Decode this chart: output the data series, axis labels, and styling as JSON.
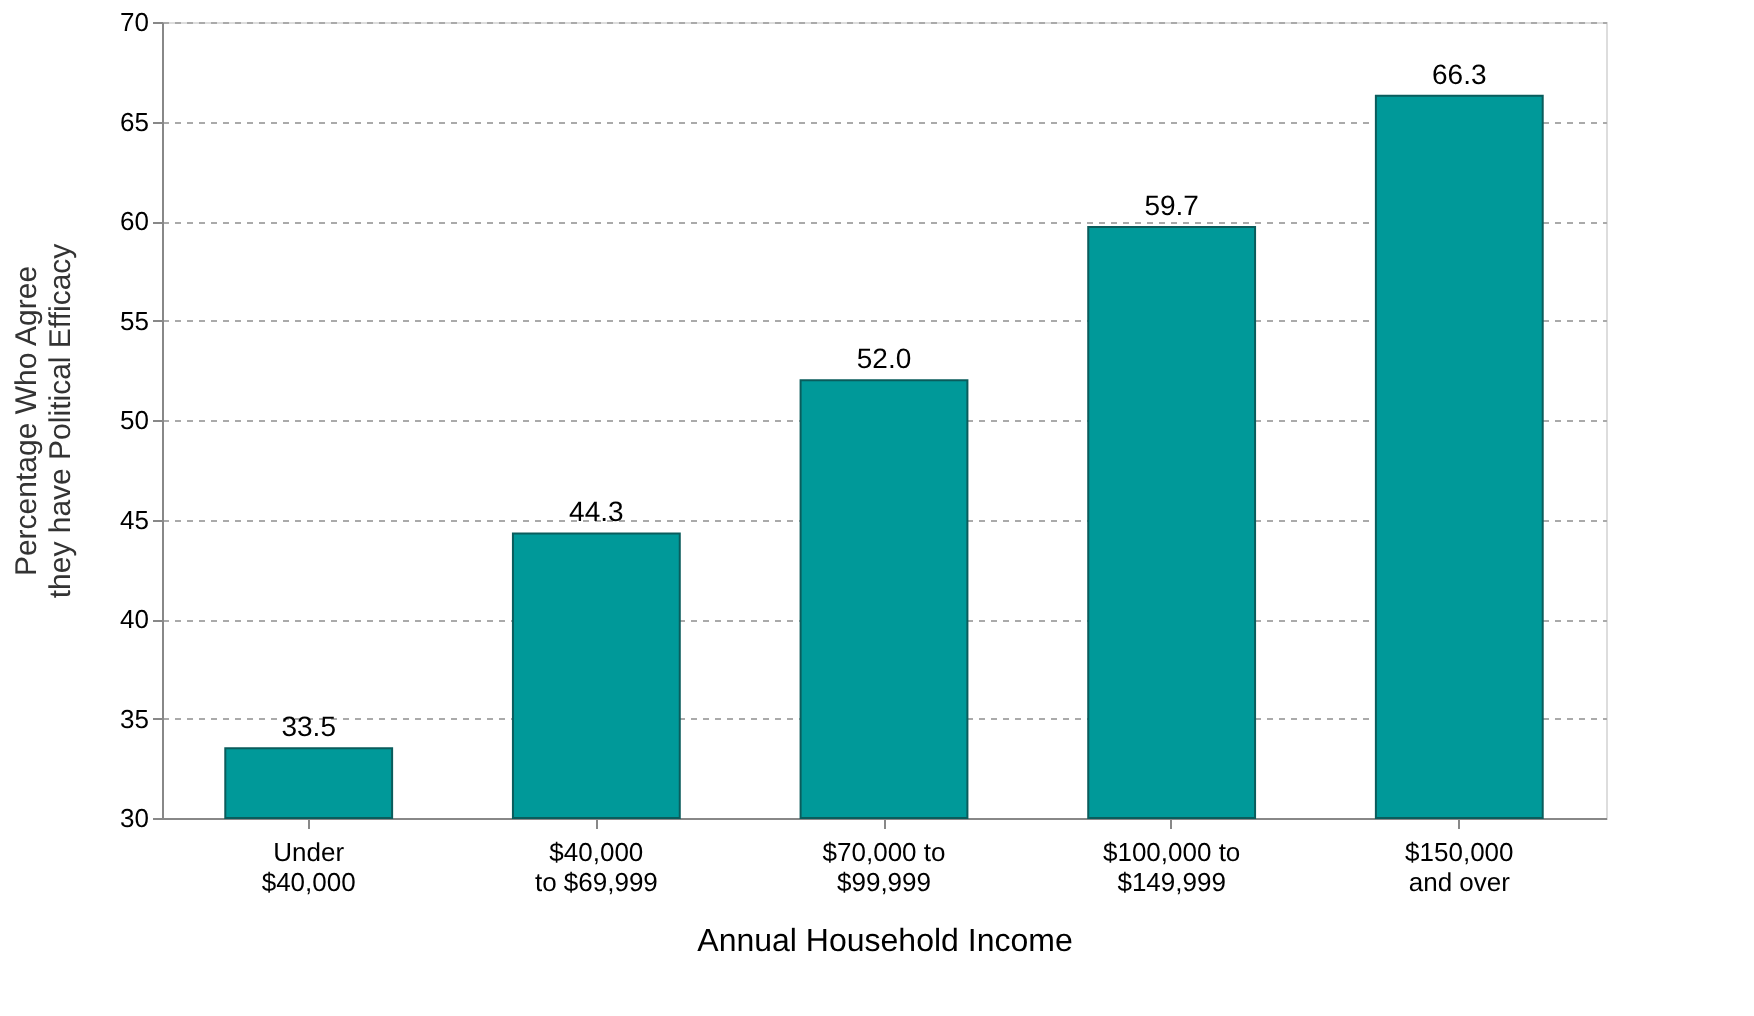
{
  "chart_data": {
    "type": "bar",
    "xlabel": "Annual Household Income",
    "ylabel": "Percentage Who Agree\nthey have Political Efficacy",
    "categories": [
      "Under\n$40,000",
      "$40,000\nto $69,999",
      "$70,000 to\n$99,999",
      "$100,000 to\n$149,999",
      "$150,000\nand over"
    ],
    "values": [
      33.5,
      44.3,
      52.0,
      59.7,
      66.3
    ],
    "color": "#009999",
    "ylim": [
      30,
      70
    ],
    "yticks": [
      30,
      35,
      40,
      45,
      50,
      55,
      60,
      65,
      70
    ],
    "grid": "y",
    "value_labels": [
      "33.5",
      "44.3",
      "52.0",
      "59.7",
      "66.3"
    ]
  }
}
